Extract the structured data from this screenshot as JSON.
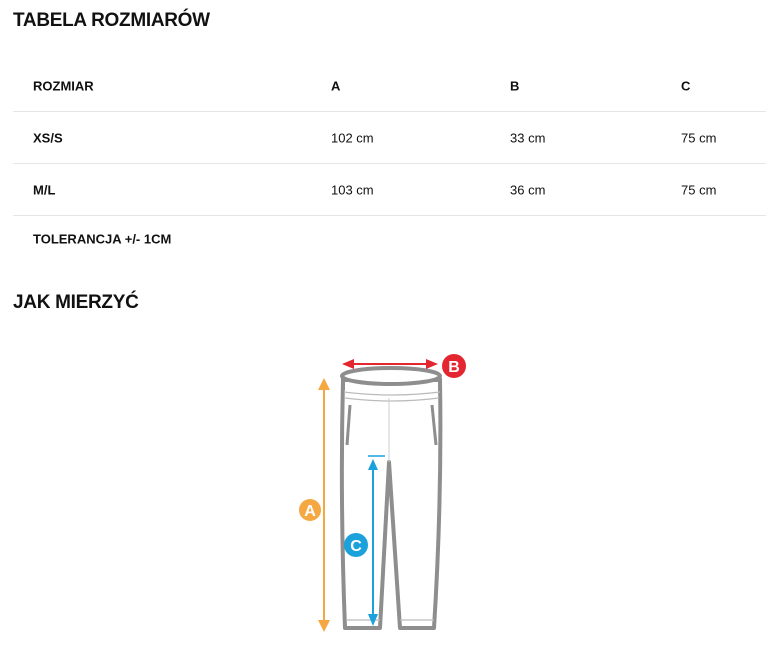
{
  "size_table": {
    "title": "TABELA ROZMIARÓW",
    "headers": [
      "ROZMIAR",
      "A",
      "B",
      "C"
    ],
    "rows": [
      [
        "XS/S",
        "102 cm",
        "33 cm",
        "75 cm"
      ],
      [
        "M/L",
        "103 cm",
        "36 cm",
        "75 cm"
      ]
    ],
    "tolerance": "TOLERANCJA +/- 1CM"
  },
  "how_to": {
    "title": "JAK MIERZYĆ",
    "labels": {
      "a": "A",
      "b": "B",
      "c": "C"
    },
    "colors": {
      "a": "#f5a742",
      "b": "#e3262f",
      "c": "#1ba1dc",
      "outline": "#8e8e8e"
    }
  }
}
